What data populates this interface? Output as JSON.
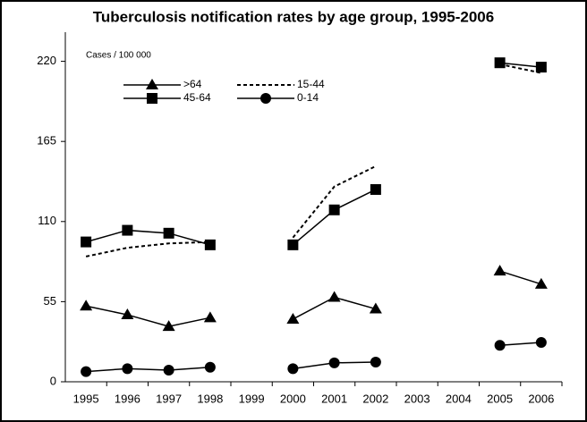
{
  "chart_data": {
    "type": "line",
    "title": "Tuberculosis notification rates by age group, 1995-2006",
    "y_label": "Cases / 100 000",
    "categories": [
      "1995",
      "1996",
      "1997",
      "1998",
      "1999",
      "2000",
      "2001",
      "2002",
      "2003",
      "2004",
      "2005",
      "2006"
    ],
    "ylim": [
      0,
      240
    ],
    "yticks": [
      0,
      55,
      110,
      165,
      220
    ],
    "series": [
      {
        "name": ">64",
        "color": "#000000",
        "marker": "triangle",
        "dashed": false,
        "values": [
          52,
          46,
          38,
          44,
          null,
          43,
          58,
          50,
          null,
          null,
          76,
          67
        ]
      },
      {
        "name": "15-44",
        "color": "#000000",
        "marker": "none",
        "dashed": true,
        "values": [
          86,
          92,
          95,
          96,
          null,
          99,
          134,
          148,
          null,
          null,
          218,
          212
        ]
      },
      {
        "name": "45-64",
        "color": "#000000",
        "marker": "square",
        "dashed": false,
        "values": [
          96,
          104,
          102,
          94,
          null,
          94,
          118,
          132,
          null,
          null,
          219,
          216
        ]
      },
      {
        "name": "0-14",
        "color": "#000000",
        "marker": "circle",
        "dashed": false,
        "values": [
          7,
          9,
          8,
          10,
          null,
          9,
          13,
          13.5,
          null,
          null,
          25,
          27
        ]
      }
    ]
  }
}
